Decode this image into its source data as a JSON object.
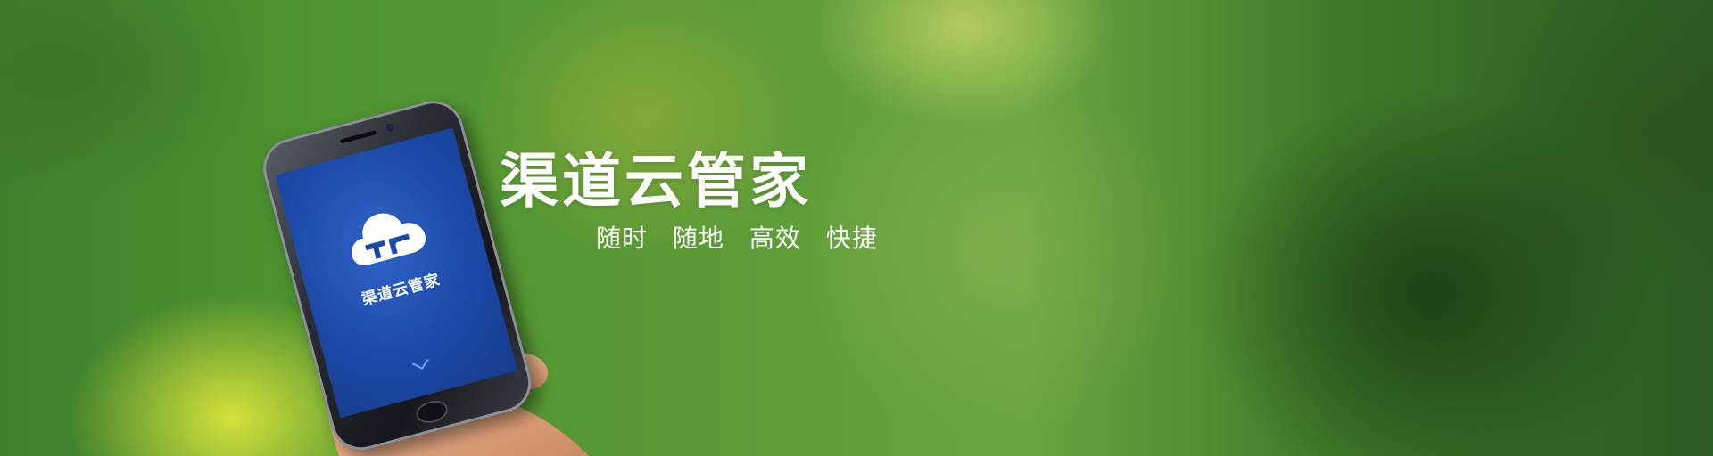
{
  "banner": {
    "title": "渠道云管家",
    "slogans": [
      "随时",
      "随地",
      "高效",
      "快捷"
    ]
  },
  "phone": {
    "app_name": "渠道云管家",
    "logo_icon": "cloud-logo-icon",
    "scroll_icon": "chevron-down-icon"
  },
  "colors": {
    "background": "#4f9530",
    "screen": "#1d4aa8",
    "text": "#ffffff"
  }
}
